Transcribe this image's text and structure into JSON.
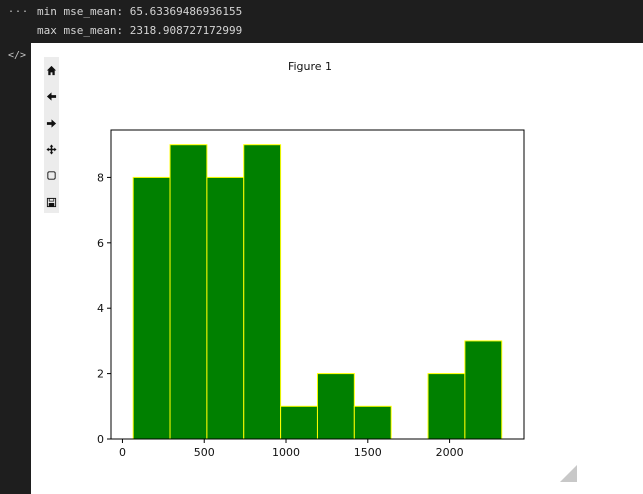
{
  "output": {
    "collapse_glyph": "...",
    "lines": [
      "min mse_mean: 65.63369486936155",
      "max mse_mean: 2318.908727172999"
    ],
    "code_toggle_glyph": "</>"
  },
  "figure": {
    "title": "Figure 1"
  },
  "toolbar": {
    "buttons": [
      {
        "name": "home-icon",
        "label": "Home"
      },
      {
        "name": "back-arrow-icon",
        "label": "Back"
      },
      {
        "name": "forward-arrow-icon",
        "label": "Forward"
      },
      {
        "name": "pan-move-icon",
        "label": "Pan"
      },
      {
        "name": "zoom-rect-icon",
        "label": "Zoom"
      },
      {
        "name": "save-disk-icon",
        "label": "Save"
      }
    ]
  },
  "chart_data": {
    "type": "bar",
    "title": "",
    "xlabel": "",
    "ylabel": "",
    "bin_edges": [
      65.63,
      290.96,
      516.29,
      741.62,
      966.95,
      1192.27,
      1417.6,
      1642.93,
      1868.25,
      2093.58,
      2318.91
    ],
    "counts": [
      8,
      9,
      8,
      9,
      1,
      2,
      1,
      0,
      2,
      3
    ],
    "xlim": [
      -70,
      2455
    ],
    "ylim": [
      0,
      9.45
    ],
    "x_ticks": [
      0,
      500,
      1000,
      1500,
      2000
    ],
    "y_ticks": [
      0,
      2,
      4,
      6,
      8
    ],
    "bar_fill": "#008000",
    "bar_edge": "#ffff00",
    "grid": false
  }
}
